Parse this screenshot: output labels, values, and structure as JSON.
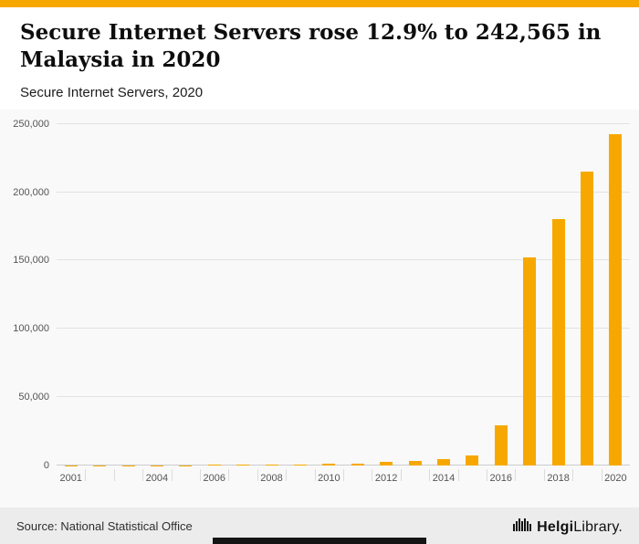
{
  "accent_color": "#F7A800",
  "header": {
    "title": "Secure Internet Servers rose 12.9% to 242,565 in Malaysia in 2020",
    "subtitle": "Secure Internet Servers, 2020"
  },
  "chart_data": {
    "type": "bar",
    "title": "Secure Internet Servers, 2020",
    "xlabel": "",
    "ylabel": "",
    "bar_color": "#F7A800",
    "grid": true,
    "ylim": [
      0,
      250000
    ],
    "yticks": [
      0,
      50000,
      100000,
      150000,
      200000,
      250000
    ],
    "ytick_labels": [
      "0",
      "50,000",
      "100,000",
      "150,000",
      "200,000",
      "250,000"
    ],
    "categories": [
      "2001",
      "2002",
      "2003",
      "2004",
      "2005",
      "2006",
      "2007",
      "2008",
      "2009",
      "2010",
      "2011",
      "2012",
      "2013",
      "2014",
      "2015",
      "2016",
      "2017",
      "2018",
      "2019",
      "2020"
    ],
    "values": [
      100,
      140,
      180,
      230,
      280,
      350,
      440,
      550,
      720,
      1050,
      1470,
      2490,
      3350,
      4690,
      7660,
      29400,
      152300,
      180100,
      214849,
      242565
    ],
    "xtick_labels": [
      "2001",
      "2004",
      "2006",
      "2008",
      "2010",
      "2012",
      "2014",
      "2016",
      "2018",
      "2020"
    ]
  },
  "footer": {
    "source": "Source: National Statistical Office",
    "logo": {
      "name_bold": "Helgi",
      "name_rest": "Library."
    }
  }
}
